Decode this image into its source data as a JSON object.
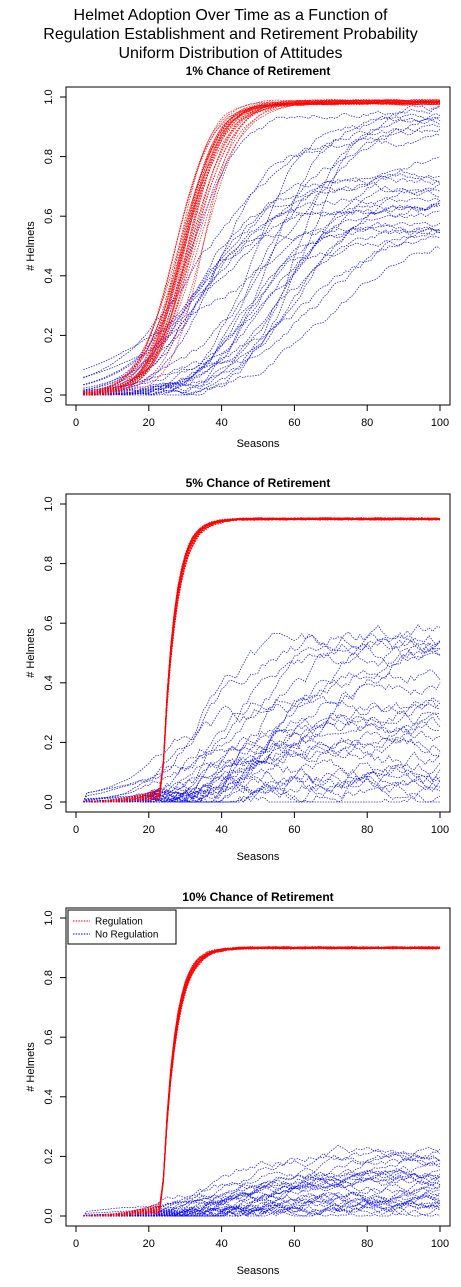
{
  "figure": {
    "title_lines": [
      "Helmet Adoption Over Time as a Function of",
      "Regulation Establishment and Retirement Probability",
      "Uniform Distribution of Attitudes"
    ]
  },
  "colors": {
    "regulation": "#ff0000",
    "no_regulation": "#0000ff",
    "axis": "#000000"
  },
  "chart_data": [
    {
      "type": "line",
      "title": "1% Chance of Retirement",
      "xlabel": "Seasons",
      "ylabel": "# Helmets",
      "xlim": [
        0,
        100
      ],
      "ylim": [
        0,
        1
      ],
      "x_ticks": [
        "0",
        "20",
        "40",
        "60",
        "80",
        "100"
      ],
      "y_ticks": [
        "0.0",
        "0.2",
        "0.4",
        "0.6",
        "0.8",
        "1.0"
      ],
      "grid": false,
      "legend": null,
      "series_count_per_group": 30,
      "series": [
        {
          "group": "Regulation",
          "color": "#ff0000",
          "start_x": 2,
          "takeoff_range": [
            18,
            24
          ],
          "midpoint_range": [
            27,
            35
          ],
          "final_range": [
            0.975,
            0.99
          ]
        },
        {
          "group": "No Regulation",
          "color": "#0000ff",
          "start_x": 2,
          "midpoint_range": [
            28,
            75
          ],
          "final_range": [
            0.5,
            0.97
          ]
        }
      ]
    },
    {
      "type": "line",
      "title": "5% Chance of Retirement",
      "xlabel": "Seasons",
      "ylabel": "# Helmets",
      "xlim": [
        0,
        100
      ],
      "ylim": [
        0,
        1
      ],
      "x_ticks": [
        "0",
        "20",
        "40",
        "60",
        "80",
        "100"
      ],
      "y_ticks": [
        "0.0",
        "0.2",
        "0.4",
        "0.6",
        "0.8",
        "1.0"
      ],
      "grid": false,
      "legend": null,
      "series_count_per_group": 30,
      "series": [
        {
          "group": "Regulation",
          "color": "#ff0000",
          "start_x": 2,
          "regulation_at": 24,
          "plateau": 0.95
        },
        {
          "group": "No Regulation",
          "color": "#0000ff",
          "start_x": 2,
          "final_range": [
            0.03,
            0.73
          ]
        }
      ]
    },
    {
      "type": "line",
      "title": "10% Chance of Retirement",
      "xlabel": "Seasons",
      "ylabel": "# Helmets",
      "xlim": [
        0,
        100
      ],
      "ylim": [
        0,
        1
      ],
      "x_ticks": [
        "0",
        "20",
        "40",
        "60",
        "80",
        "100"
      ],
      "y_ticks": [
        "0.0",
        "0.2",
        "0.4",
        "0.6",
        "0.8",
        "1.0"
      ],
      "grid": false,
      "legend": {
        "position": "top-left",
        "entries": [
          {
            "label": "Regulation",
            "color": "#ff0000"
          },
          {
            "label": "No Regulation",
            "color": "#0000ff"
          }
        ]
      },
      "series_count_per_group": 30,
      "series": [
        {
          "group": "Regulation",
          "color": "#ff0000",
          "start_x": 2,
          "regulation_at": 24,
          "plateau": 0.9
        },
        {
          "group": "No Regulation",
          "color": "#0000ff",
          "start_x": 2,
          "final_range": [
            0.01,
            0.28
          ]
        }
      ]
    }
  ]
}
